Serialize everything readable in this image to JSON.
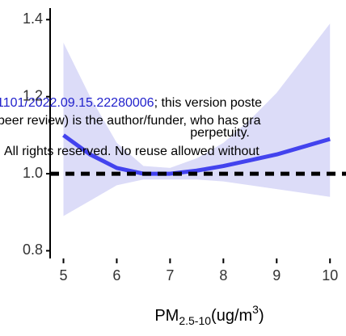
{
  "chart_data": {
    "type": "line",
    "x": [
      5,
      5.5,
      6,
      6.5,
      7,
      7.5,
      8,
      8.5,
      9,
      9.5,
      10
    ],
    "series": [
      {
        "color": "#4343ee",
        "values": [
          1.1,
          1.05,
          1.015,
          1.0,
          1.0,
          1.008,
          1.02,
          1.035,
          1.05,
          1.07,
          1.09
        ],
        "lower": [
          0.89,
          0.93,
          0.97,
          0.985,
          0.985,
          0.985,
          0.98,
          0.97,
          0.96,
          0.95,
          0.94
        ],
        "upper": [
          1.34,
          1.2,
          1.08,
          1.02,
          1.015,
          1.04,
          1.08,
          1.14,
          1.21,
          1.3,
          1.39
        ],
        "band_color": "#dcdcf8"
      }
    ],
    "reference_line": 1.0,
    "xlim": [
      4.75,
      10.3
    ],
    "ylim": [
      0.78,
      1.43
    ],
    "xticks": [
      5,
      6,
      7,
      8,
      9,
      10
    ],
    "yticks": [
      {
        "value": 0.8,
        "label": "0.8"
      },
      {
        "value": 1.0,
        "label": "1.0"
      },
      {
        "value": 1.2,
        "label": "1.2"
      },
      {
        "value": 1.4,
        "label": "1.4"
      }
    ],
    "x_label": {
      "base": "PM",
      "sub": "2.5-10",
      "mid": "(ug/m",
      "sup": "3",
      "end": ")"
    }
  },
  "watermark": {
    "link": "1101/2022.09.15.22280006",
    "line1": "; this version poste",
    "line2": "peer review) is the author/funder, who has gra",
    "line3": "perpetuity.",
    "line4": "All rights reserved. No reuse allowed without"
  }
}
